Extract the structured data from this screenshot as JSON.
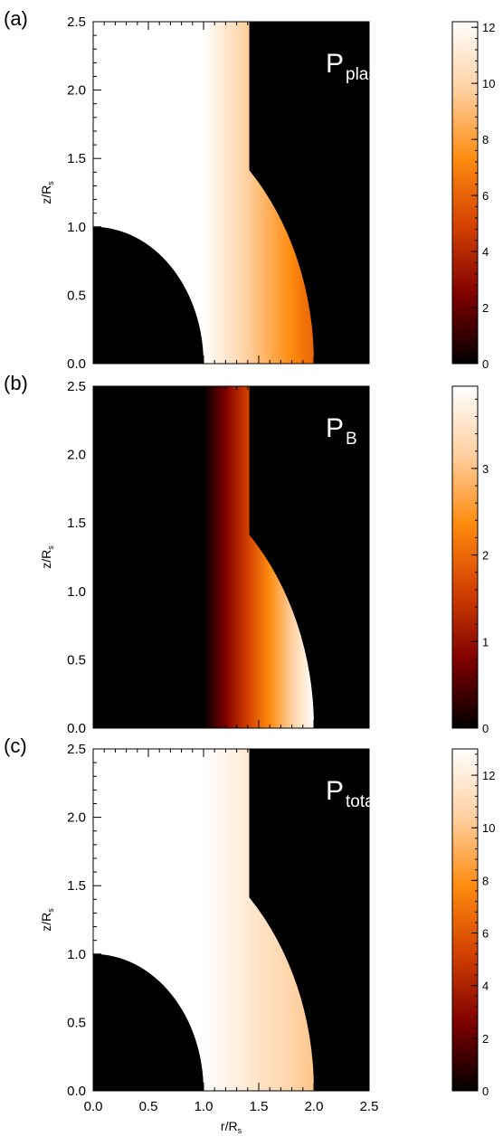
{
  "chart_data": [
    {
      "type": "heatmap",
      "panel_label": "(a)",
      "title_main": "P",
      "title_sub": "plasma",
      "xlabel": "",
      "ylabel": "z/R",
      "ylabel_sub": "s",
      "xlim": [
        0,
        2.5
      ],
      "ylim": [
        0,
        2.5
      ],
      "x_ticks": [],
      "y_ticks": [
        "0.0",
        "0.5",
        "1.0",
        "1.5",
        "2.0",
        "2.5"
      ],
      "colorbar": {
        "min": 0,
        "max": 12.2,
        "ticks": [
          "0",
          "2",
          "4",
          "6",
          "8",
          "10",
          "12"
        ]
      },
      "field": {
        "sphere_radius": 1.0,
        "outer_radius": 2.0,
        "cylinder_radius": 1.414,
        "value_at_r_min": 12.2,
        "value_at_r_max": 6.0
      }
    },
    {
      "type": "heatmap",
      "panel_label": "(b)",
      "title_main": "P",
      "title_sub": "B",
      "xlabel": "",
      "ylabel": "z/R",
      "ylabel_sub": "s",
      "xlim": [
        0,
        2.5
      ],
      "ylim": [
        0,
        2.5
      ],
      "x_ticks": [],
      "y_ticks": [
        "0.0",
        "0.5",
        "1.0",
        "1.5",
        "2.0",
        "2.5"
      ],
      "colorbar": {
        "min": 0,
        "max": 3.95,
        "ticks": [
          "0",
          "1",
          "2",
          "3"
        ]
      },
      "field": {
        "sphere_radius": 1.0,
        "outer_radius": 2.0,
        "cylinder_radius": 1.414,
        "value_at_r_min": 0.0,
        "value_at_r_max": 3.95
      }
    },
    {
      "type": "heatmap",
      "panel_label": "(c)",
      "title_main": "P",
      "title_sub": "total",
      "xlabel": "r/R",
      "xlabel_sub": "s",
      "ylabel": "z/R",
      "ylabel_sub": "s",
      "xlim": [
        0,
        2.5
      ],
      "ylim": [
        0,
        2.5
      ],
      "x_ticks": [
        "0.0",
        "0.5",
        "1.0",
        "1.5",
        "2.0",
        "2.5"
      ],
      "y_ticks": [
        "0.0",
        "0.5",
        "1.0",
        "1.5",
        "2.0",
        "2.5"
      ],
      "colorbar": {
        "min": 0,
        "max": 13.0,
        "ticks": [
          "0",
          "2",
          "4",
          "6",
          "8",
          "10",
          "12"
        ]
      },
      "field": {
        "sphere_radius": 1.0,
        "outer_radius": 2.0,
        "cylinder_radius": 1.414,
        "value_at_r_min": 13.0,
        "value_at_r_max": 10.0
      }
    }
  ],
  "colormap": {
    "name": "red-temperature",
    "stops": [
      "#000000",
      "#7f0000",
      "#d24000",
      "#ff8c10",
      "#ffd0a0",
      "#ffffff"
    ]
  }
}
